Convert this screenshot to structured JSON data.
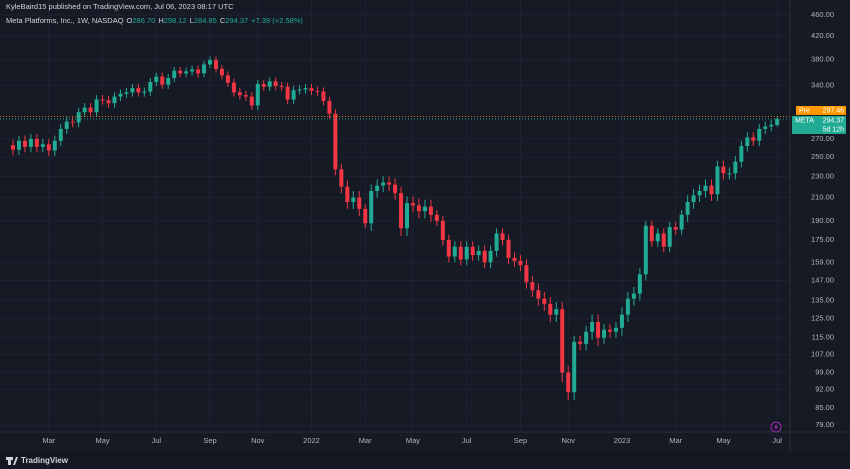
{
  "header": {
    "publisher": "KyleBaird15 published on TradingView.com, Jul 06, 2023 08:17 UTC"
  },
  "footer": {
    "brand": "TradingView"
  },
  "chart_data": {
    "type": "candlestick",
    "legend": {
      "name": "Meta Platforms, Inc., 1W, NASDAQ",
      "items": [
        {
          "key": "O",
          "value": "286.70"
        },
        {
          "key": "H",
          "value": "298.12"
        },
        {
          "key": "L",
          "value": "284.85"
        },
        {
          "key": "C",
          "value": "294.37"
        }
      ],
      "change": "+7.39 (+2.58%)"
    },
    "categories": [
      null,
      null,
      null,
      null,
      null,
      null,
      "Mar",
      null,
      null,
      null,
      null,
      null,
      null,
      null,
      null,
      "May",
      null,
      null,
      null,
      null,
      null,
      null,
      null,
      null,
      "Jul",
      null,
      null,
      null,
      null,
      null,
      null,
      null,
      null,
      "Sep",
      null,
      null,
      null,
      null,
      null,
      null,
      null,
      "Nov",
      null,
      null,
      null,
      null,
      null,
      null,
      null,
      null,
      "2022",
      null,
      null,
      null,
      null,
      null,
      null,
      null,
      null,
      "Mar",
      null,
      null,
      null,
      null,
      null,
      null,
      null,
      "May",
      null,
      null,
      null,
      null,
      null,
      null,
      null,
      null,
      "Jul",
      null,
      null,
      null,
      null,
      null,
      null,
      null,
      null,
      "Sep",
      null,
      null,
      null,
      null,
      null,
      null,
      null,
      "Nov",
      null,
      null,
      null,
      null,
      null,
      null,
      null,
      null,
      "2023",
      null,
      null,
      null,
      null,
      null,
      null,
      null,
      null,
      "Mar",
      null,
      null,
      null,
      null,
      null,
      null,
      null,
      "May",
      null,
      null,
      null,
      null,
      null,
      null,
      null,
      null,
      "Jul"
    ],
    "series": [
      {
        "name": "META",
        "up_color": "#22ab94",
        "down_color": "#f23645",
        "open": [
          263,
          258,
          268,
          261,
          270,
          261,
          264,
          257,
          268,
          282,
          291,
          290,
          303,
          309,
          303,
          320,
          319,
          315,
          324,
          328,
          330,
          336,
          330,
          331,
          345,
          353,
          341,
          351,
          362,
          358,
          361,
          364,
          358,
          372,
          379,
          365,
          355,
          344,
          330,
          326,
          324,
          312,
          342,
          338,
          346,
          339,
          338,
          320,
          333,
          334,
          336,
          332,
          331,
          318,
          301,
          237,
          220,
          206,
          210,
          200,
          188,
          216,
          221,
          224,
          222,
          214,
          184,
          205,
          203,
          198,
          202,
          195,
          190,
          175,
          163,
          170,
          161,
          170,
          164,
          167,
          159,
          167,
          180,
          175,
          162,
          160,
          157,
          146,
          141,
          136,
          133,
          127,
          130,
          99,
          91,
          113,
          112,
          118,
          123,
          115,
          119,
          118,
          120,
          127,
          136,
          139,
          151,
          186,
          174,
          180,
          170,
          185,
          183,
          195,
          206,
          212,
          216,
          221,
          213,
          240,
          233,
          233,
          245,
          262,
          272,
          268,
          282,
          285,
          286.7
        ],
        "high": [
          269,
          274,
          274,
          276,
          276,
          270,
          270,
          274,
          288,
          297,
          297,
          309,
          315,
          315,
          326,
          326,
          325,
          330,
          334,
          336,
          342,
          342,
          337,
          351,
          359,
          359,
          357,
          368,
          368,
          367,
          370,
          370,
          378,
          385,
          385,
          371,
          361,
          350,
          336,
          332,
          330,
          348,
          348,
          352,
          352,
          345,
          344,
          339,
          340,
          342,
          342,
          338,
          337,
          324,
          307,
          243,
          226,
          216,
          216,
          204,
          222,
          227,
          230,
          230,
          228,
          220,
          211,
          211,
          209,
          208,
          208,
          199,
          194,
          179,
          174,
          174,
          174,
          174,
          171,
          171,
          171,
          184,
          184,
          179,
          166,
          164,
          161,
          150,
          145,
          140,
          137,
          134,
          134,
          102,
          116,
          116,
          121,
          127,
          127,
          122,
          122,
          123,
          131,
          140,
          143,
          155,
          190,
          190,
          184,
          184,
          189,
          189,
          199,
          212,
          218,
          222,
          227,
          227,
          246,
          246,
          239,
          251,
          268,
          278,
          278,
          288,
          291,
          293,
          298.12
        ],
        "low": [
          252,
          252,
          255,
          255,
          255,
          255,
          251,
          251,
          262,
          276,
          284,
          284,
          297,
          297,
          297,
          313,
          309,
          309,
          318,
          322,
          324,
          324,
          324,
          325,
          339,
          335,
          335,
          345,
          352,
          352,
          355,
          352,
          352,
          366,
          359,
          349,
          338,
          324,
          320,
          318,
          306,
          306,
          332,
          332,
          333,
          332,
          314,
          314,
          327,
          328,
          326,
          325,
          312,
          295,
          231,
          214,
          200,
          200,
          194,
          184,
          182,
          210,
          215,
          216,
          208,
          178,
          178,
          197,
          192,
          192,
          189,
          186,
          171,
          159,
          159,
          157,
          157,
          160,
          160,
          155,
          155,
          163,
          171,
          158,
          156,
          153,
          142,
          137,
          132,
          129,
          123,
          123,
          95,
          88,
          88,
          109,
          109,
          114,
          111,
          112,
          115,
          115,
          116,
          123,
          132,
          135,
          147,
          170,
          170,
          166,
          166,
          179,
          179,
          189,
          200,
          206,
          210,
          207,
          207,
          227,
          227,
          227,
          239,
          256,
          262,
          262,
          276,
          279,
          284.85
        ],
        "close": [
          258,
          268,
          261,
          270,
          261,
          264,
          257,
          268,
          282,
          291,
          290,
          303,
          309,
          303,
          320,
          319,
          315,
          324,
          328,
          330,
          336,
          330,
          331,
          345,
          353,
          341,
          351,
          362,
          358,
          361,
          364,
          358,
          372,
          379,
          365,
          355,
          344,
          330,
          326,
          324,
          312,
          342,
          338,
          346,
          339,
          338,
          320,
          333,
          334,
          336,
          332,
          331,
          318,
          301,
          237,
          220,
          206,
          210,
          200,
          188,
          216,
          221,
          224,
          222,
          214,
          184,
          205,
          203,
          198,
          202,
          195,
          190,
          175,
          163,
          170,
          161,
          170,
          164,
          167,
          159,
          167,
          180,
          175,
          162,
          160,
          157,
          146,
          141,
          136,
          133,
          127,
          130,
          99,
          91,
          113,
          112,
          118,
          123,
          115,
          119,
          118,
          120,
          127,
          136,
          139,
          151,
          186,
          174,
          180,
          170,
          185,
          183,
          195,
          206,
          212,
          216,
          221,
          213,
          240,
          233,
          233,
          245,
          262,
          272,
          268,
          282,
          285,
          286.98,
          294.37
        ]
      }
    ],
    "price_tags": [
      {
        "label": "Pre",
        "value": 297.46,
        "value_label": "297.46",
        "color": "#ff9800"
      },
      {
        "value": 294.37,
        "value_label": "294.37",
        "countdown": "5d 12h",
        "color": "#22ab94"
      }
    ],
    "log_scale": true,
    "grid": true,
    "ylim": [
      76.7,
      470
    ],
    "yticks": [
      {
        "value": 460,
        "label": "460.00"
      },
      {
        "value": 420,
        "label": "420.00"
      },
      {
        "value": 380,
        "label": "380.00"
      },
      {
        "value": 340,
        "label": "340.00"
      },
      {
        "value": 270,
        "label": "270.00"
      },
      {
        "value": 250,
        "label": "250.00"
      },
      {
        "value": 230,
        "label": "230.00"
      },
      {
        "value": 210,
        "label": "210.00"
      },
      {
        "value": 190,
        "label": "190.00"
      },
      {
        "value": 175,
        "label": "175.00"
      },
      {
        "value": 159,
        "label": "159.00"
      },
      {
        "value": 147,
        "label": "147.00"
      },
      {
        "value": 135,
        "label": "135.00"
      },
      {
        "value": 125,
        "label": "125.00"
      },
      {
        "value": 115,
        "label": "115.00"
      },
      {
        "value": 107,
        "label": "107.00"
      },
      {
        "value": 99,
        "label": "99.00"
      },
      {
        "value": 92,
        "label": "92.00"
      },
      {
        "value": 85,
        "label": "85.00"
      },
      {
        "value": 79,
        "label": "79.00"
      }
    ]
  }
}
